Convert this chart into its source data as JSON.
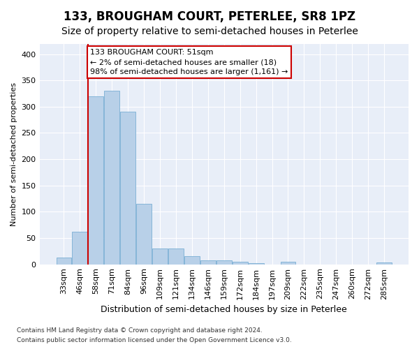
{
  "title": "133, BROUGHAM COURT, PETERLEE, SR8 1PZ",
  "subtitle": "Size of property relative to semi-detached houses in Peterlee",
  "xlabel": "Distribution of semi-detached houses by size in Peterlee",
  "ylabel": "Number of semi-detached properties",
  "footnote1": "Contains HM Land Registry data © Crown copyright and database right 2024.",
  "footnote2": "Contains public sector information licensed under the Open Government Licence v3.0.",
  "annotation_line1": "133 BROUGHAM COURT: 51sqm",
  "annotation_line2": "← 2% of semi-detached houses are smaller (18)",
  "annotation_line3": "98% of semi-detached houses are larger (1,161) →",
  "categories": [
    "33sqm",
    "46sqm",
    "58sqm",
    "71sqm",
    "84sqm",
    "96sqm",
    "109sqm",
    "121sqm",
    "134sqm",
    "146sqm",
    "159sqm",
    "172sqm",
    "184sqm",
    "197sqm",
    "209sqm",
    "222sqm",
    "235sqm",
    "247sqm",
    "260sqm",
    "272sqm",
    "285sqm"
  ],
  "values": [
    13,
    62,
    320,
    330,
    290,
    115,
    30,
    30,
    16,
    8,
    7,
    5,
    2,
    0,
    5,
    0,
    0,
    0,
    0,
    0,
    3
  ],
  "bar_color": "#b8d0e8",
  "bar_edge_color": "#7aafd4",
  "vline_color": "#cc0000",
  "vline_pos": 1.5,
  "ylim": [
    0,
    420
  ],
  "yticks": [
    0,
    50,
    100,
    150,
    200,
    250,
    300,
    350,
    400
  ],
  "bg_color": "#ffffff",
  "plot_bg_color": "#e8eef8",
  "title_fontsize": 12,
  "subtitle_fontsize": 10,
  "annotation_box_color": "#cc0000",
  "annotation_fontsize": 8
}
